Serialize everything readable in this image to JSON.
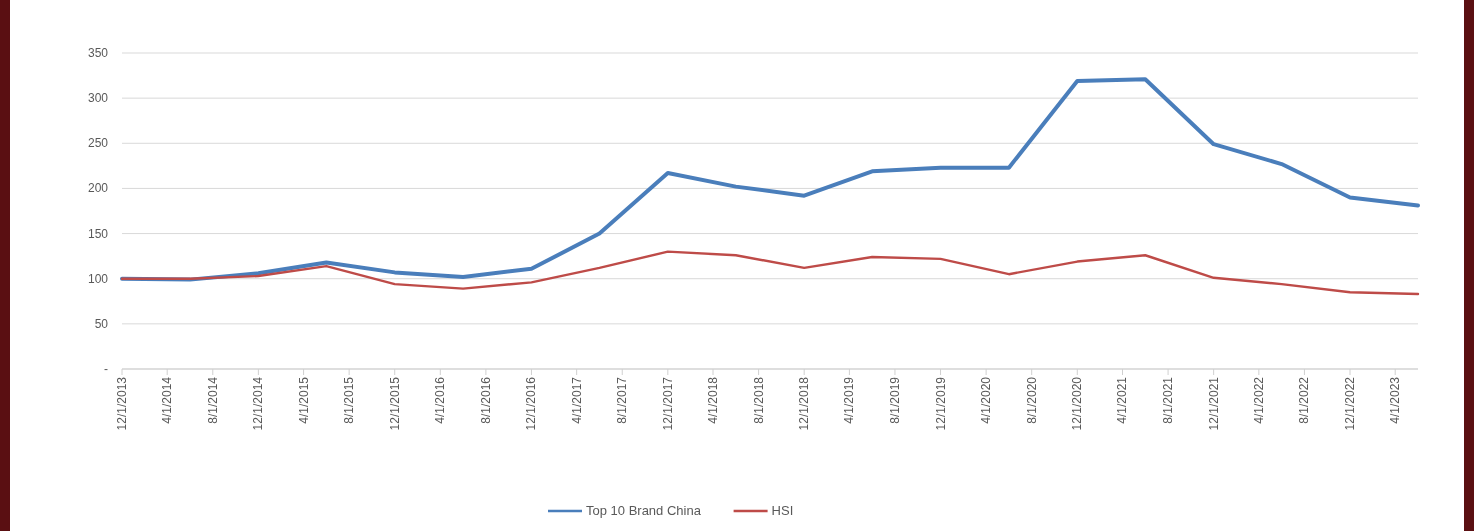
{
  "chart_data": {
    "type": "line",
    "x": [
      "2013-12-01",
      "2014-06-01",
      "2014-12-01",
      "2015-06-01",
      "2015-12-01",
      "2016-06-01",
      "2016-12-01",
      "2017-06-01",
      "2017-12-01",
      "2018-06-01",
      "2018-12-01",
      "2019-06-01",
      "2019-12-01",
      "2020-06-01",
      "2020-12-01",
      "2021-06-01",
      "2021-12-01",
      "2022-06-01",
      "2022-12-01",
      "2023-06-01"
    ],
    "series": [
      {
        "name": "Top 10 Brand China",
        "color": "#4a7ebb",
        "values": [
          100,
          99,
          106,
          118,
          107,
          102,
          111,
          150,
          217,
          202,
          192,
          219,
          223,
          223,
          319,
          321,
          249,
          227,
          190,
          181
        ]
      },
      {
        "name": "HSI",
        "color": "#be4b48",
        "values": [
          100,
          100,
          103,
          114,
          94,
          89,
          96,
          112,
          130,
          126,
          112,
          124,
          122,
          105,
          119,
          126,
          101,
          94,
          85,
          83
        ]
      }
    ],
    "xlim": [
      "2013-12-01",
      "2023-06-01"
    ],
    "xticks": [
      {
        "value": "2013-12-01",
        "label": "12/1/2013"
      },
      {
        "value": "2014-04-01",
        "label": "4/1/2014"
      },
      {
        "value": "2014-08-01",
        "label": "8/1/2014"
      },
      {
        "value": "2014-12-01",
        "label": "12/1/2014"
      },
      {
        "value": "2015-04-01",
        "label": "4/1/2015"
      },
      {
        "value": "2015-08-01",
        "label": "8/1/2015"
      },
      {
        "value": "2015-12-01",
        "label": "12/1/2015"
      },
      {
        "value": "2016-04-01",
        "label": "4/1/2016"
      },
      {
        "value": "2016-08-01",
        "label": "8/1/2016"
      },
      {
        "value": "2016-12-01",
        "label": "12/1/2016"
      },
      {
        "value": "2017-04-01",
        "label": "4/1/2017"
      },
      {
        "value": "2017-08-01",
        "label": "8/1/2017"
      },
      {
        "value": "2017-12-01",
        "label": "12/1/2017"
      },
      {
        "value": "2018-04-01",
        "label": "4/1/2018"
      },
      {
        "value": "2018-08-01",
        "label": "8/1/2018"
      },
      {
        "value": "2018-12-01",
        "label": "12/1/2018"
      },
      {
        "value": "2019-04-01",
        "label": "4/1/2019"
      },
      {
        "value": "2019-08-01",
        "label": "8/1/2019"
      },
      {
        "value": "2019-12-01",
        "label": "12/1/2019"
      },
      {
        "value": "2020-04-01",
        "label": "4/1/2020"
      },
      {
        "value": "2020-08-01",
        "label": "8/1/2020"
      },
      {
        "value": "2020-12-01",
        "label": "12/1/2020"
      },
      {
        "value": "2021-04-01",
        "label": "4/1/2021"
      },
      {
        "value": "2021-08-01",
        "label": "8/1/2021"
      },
      {
        "value": "2021-12-01",
        "label": "12/1/2021"
      },
      {
        "value": "2022-04-01",
        "label": "4/1/2022"
      },
      {
        "value": "2022-08-01",
        "label": "8/1/2022"
      },
      {
        "value": "2022-12-01",
        "label": "12/1/2022"
      },
      {
        "value": "2023-04-01",
        "label": "4/1/2023"
      }
    ],
    "ylim": [
      0,
      350
    ],
    "yticks": [
      {
        "value": 0,
        "label": "-"
      },
      50,
      100,
      150,
      200,
      250,
      300,
      350
    ],
    "grid": "y",
    "legend": "bottom",
    "marker": "none",
    "line_style": "solid"
  }
}
